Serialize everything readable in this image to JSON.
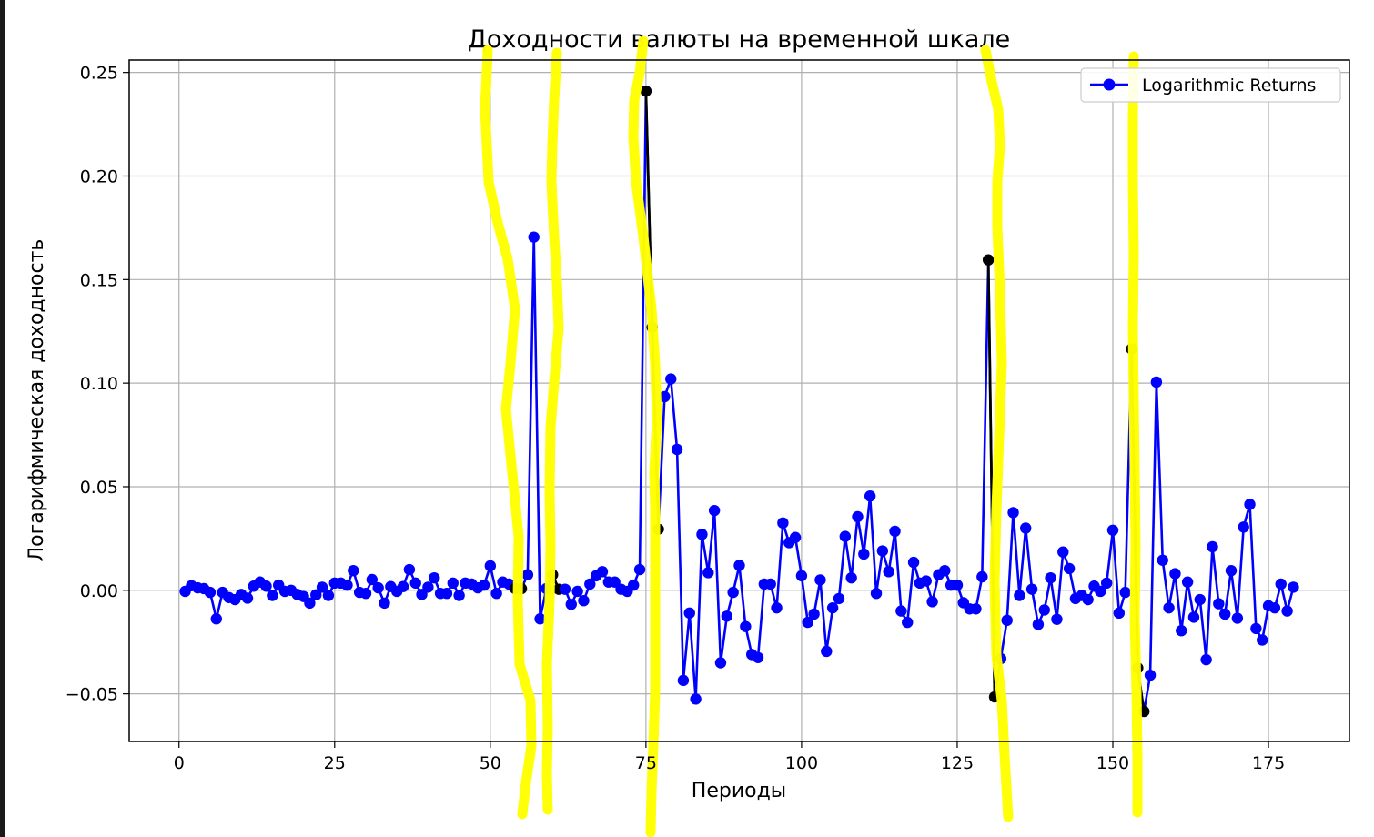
{
  "chart_data": {
    "type": "line",
    "title": "Доходности валюты на временной шкале",
    "xlabel": "Периоды",
    "ylabel": "Логарифмическая доходность",
    "xlim": [
      -8,
      188
    ],
    "ylim": [
      -0.073,
      0.256
    ],
    "xticks": [
      0,
      25,
      50,
      75,
      100,
      125,
      150,
      175
    ],
    "yticks": [
      -0.05,
      0.0,
      0.05,
      0.1,
      0.15,
      0.2,
      0.25
    ],
    "ytick_labels": [
      "−0.05",
      "0.00",
      "0.05",
      "0.10",
      "0.15",
      "0.20",
      "0.25"
    ],
    "grid": true,
    "legend": "top-right",
    "colors": {
      "series": "#0000ff",
      "highlight": "#000000",
      "annotation": "#ffff00"
    },
    "series": [
      {
        "name": "Logarithmic Returns",
        "marker": "circle",
        "x_start": 1,
        "values": [
          -0.0005,
          0.0022,
          0.0012,
          0.0008,
          -0.001,
          -0.0138,
          -0.001,
          -0.0035,
          -0.0045,
          -0.002,
          -0.0038,
          0.002,
          0.004,
          0.002,
          -0.0025,
          0.0025,
          -0.0005,
          0.0,
          -0.002,
          -0.003,
          -0.0062,
          -0.0022,
          0.0015,
          -0.0025,
          0.0035,
          0.0035,
          0.0025,
          0.0095,
          -0.001,
          -0.0015,
          0.0052,
          0.0012,
          -0.0062,
          0.0018,
          -0.0005,
          0.0018,
          0.01,
          0.0035,
          -0.002,
          0.0015,
          0.006,
          -0.0015,
          -0.0015,
          0.0035,
          -0.0025,
          0.0035,
          0.003,
          0.0012,
          0.0025,
          0.0118,
          -0.0015,
          0.004,
          0.003,
          0.0008,
          0.0008,
          0.0075,
          0.1705,
          -0.0138,
          0.0008,
          0.0075,
          0.0005,
          0.0005,
          -0.0068,
          -0.0005,
          -0.005,
          0.003,
          0.007,
          0.009,
          0.004,
          0.004,
          0.0005,
          -0.0005,
          0.0025,
          0.01,
          0.241,
          0.127,
          0.0295,
          0.0935,
          0.102,
          0.068,
          -0.0435,
          -0.011,
          -0.0525,
          0.027,
          0.0085,
          0.0385,
          -0.035,
          -0.0125,
          -0.001,
          0.012,
          -0.0175,
          -0.031,
          -0.0325,
          0.003,
          0.003,
          -0.0085,
          0.0325,
          0.023,
          0.0255,
          0.007,
          -0.0155,
          -0.0115,
          0.005,
          -0.0295,
          -0.0085,
          -0.004,
          0.026,
          0.006,
          0.0355,
          0.0175,
          0.0455,
          -0.0015,
          0.019,
          0.009,
          0.0285,
          -0.01,
          -0.0155,
          0.0135,
          0.0035,
          0.0045,
          -0.0055,
          0.0075,
          0.0095,
          0.0025,
          0.0025,
          -0.006,
          -0.009,
          -0.009,
          0.0065,
          0.1595,
          -0.0515,
          -0.033,
          -0.0145,
          0.0375,
          -0.0025,
          0.03,
          0.0005,
          -0.0165,
          -0.0095,
          0.006,
          -0.014,
          0.0185,
          0.0105,
          -0.004,
          -0.0025,
          -0.0045,
          0.002,
          -0.0005,
          0.0035,
          0.029,
          -0.011,
          -0.001,
          0.1165,
          -0.0375,
          -0.0585,
          -0.041,
          0.1005,
          0.0145,
          -0.0085,
          0.008,
          -0.0195,
          0.004,
          -0.013,
          -0.0045,
          -0.0335,
          0.021,
          -0.0065,
          -0.0115,
          0.0095,
          -0.0135,
          0.0305,
          0.0415,
          -0.0185,
          -0.024,
          -0.0075,
          -0.0085,
          0.003,
          -0.01,
          0.0015
        ]
      }
    ],
    "highlight_segments": [
      {
        "from": 54,
        "to": 55
      },
      {
        "from": 60,
        "to": 61
      },
      {
        "from": 75,
        "to": 77
      },
      {
        "from": 130,
        "to": 131
      },
      {
        "from": 153,
        "to": 155
      }
    ]
  }
}
